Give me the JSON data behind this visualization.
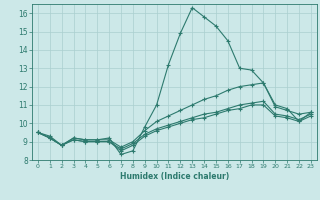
{
  "title": "",
  "xlabel": "Humidex (Indice chaleur)",
  "xlim": [
    -0.5,
    23.5
  ],
  "ylim": [
    8,
    16.5
  ],
  "xticks": [
    0,
    1,
    2,
    3,
    4,
    5,
    6,
    7,
    8,
    9,
    10,
    11,
    12,
    13,
    14,
    15,
    16,
    17,
    18,
    19,
    20,
    21,
    22,
    23
  ],
  "yticks": [
    8,
    9,
    10,
    11,
    12,
    13,
    14,
    15,
    16
  ],
  "background_color": "#cce8e8",
  "grid_color": "#aacfcf",
  "line_color": "#2d7a6e",
  "lines": [
    [
      9.5,
      9.3,
      8.8,
      9.2,
      9.1,
      9.1,
      9.2,
      8.3,
      8.5,
      9.8,
      11.0,
      13.2,
      14.9,
      16.3,
      15.8,
      15.3,
      14.5,
      13.0,
      12.9,
      12.2,
      11.0,
      10.8,
      10.1,
      10.6
    ],
    [
      9.5,
      9.2,
      8.8,
      9.2,
      9.1,
      9.1,
      9.1,
      8.7,
      9.0,
      9.6,
      10.1,
      10.4,
      10.7,
      11.0,
      11.3,
      11.5,
      11.8,
      12.0,
      12.1,
      12.2,
      10.9,
      10.7,
      10.5,
      10.6
    ],
    [
      9.5,
      9.2,
      8.8,
      9.1,
      9.0,
      9.0,
      9.0,
      8.6,
      8.9,
      9.4,
      9.7,
      9.9,
      10.1,
      10.3,
      10.5,
      10.6,
      10.8,
      11.0,
      11.1,
      11.2,
      10.5,
      10.4,
      10.2,
      10.5
    ],
    [
      9.5,
      9.2,
      8.8,
      9.1,
      9.0,
      9.0,
      9.0,
      8.5,
      8.8,
      9.3,
      9.6,
      9.8,
      10.0,
      10.2,
      10.3,
      10.5,
      10.7,
      10.8,
      11.0,
      11.0,
      10.4,
      10.3,
      10.1,
      10.4
    ]
  ]
}
